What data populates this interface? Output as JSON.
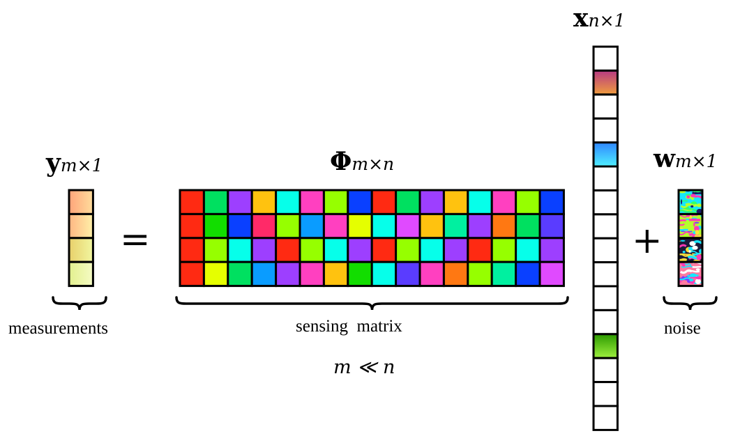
{
  "labels": {
    "y_symbol": "y",
    "y_subscript": "m×1",
    "phi_symbol": "Φ",
    "phi_subscript": "m×n",
    "x_symbol": "x",
    "x_subscript": "n×1",
    "w_symbol": "w",
    "w_subscript": "m×1",
    "equals": "=",
    "plus": "+",
    "measurements": "measurements",
    "sensing_matrix": "sensing  matrix",
    "condition": "m ≪ n",
    "noise": "noise"
  },
  "measurement_colors": [
    [
      "#ffa47a",
      "#ffdd9c"
    ],
    [
      "#ffb683",
      "#fff0a8"
    ],
    [
      "#e8d06a",
      "#f1f6a0"
    ],
    [
      "#e3f08e",
      "#f5fbc4"
    ]
  ],
  "matrix_colors": [
    [
      "#ff2a12",
      "#00e060",
      "#9d3fff",
      "#ffc20f",
      "#06ffea",
      "#ff40c0",
      "#96ff00",
      "#0a40ff",
      "#ff2a12",
      "#00e060",
      "#9d3fff",
      "#ffc20f",
      "#06ffea",
      "#ff40c0",
      "#96ff00",
      "#0a40ff"
    ],
    [
      "#ff2a12",
      "#12dd00",
      "#0a40ff",
      "#ff2a68",
      "#96ff00",
      "#0a9cff",
      "#ff40c0",
      "#e5ff00",
      "#06ffea",
      "#e04aff",
      "#ffc20f",
      "#00f0a0",
      "#9d3fff",
      "#ff7812",
      "#00e060",
      "#5a3cff"
    ],
    [
      "#ff2a12",
      "#96ff00",
      "#06ffea",
      "#9d3fff",
      "#ff2a12",
      "#96ff00",
      "#06ffea",
      "#9d3fff",
      "#ff2a12",
      "#96ff00",
      "#06ffea",
      "#9d3fff",
      "#ff2a12",
      "#96ff00",
      "#06ffea",
      "#9d3fff"
    ],
    [
      "#ff2a12",
      "#e5ff00",
      "#00e060",
      "#0a9cff",
      "#9d3fff",
      "#ff40c0",
      "#ffc20f",
      "#12dd00",
      "#06ffea",
      "#5a3cff",
      "#ff40c0",
      "#ff7812",
      "#96ff00",
      "#00f0a0",
      "#0a40ff",
      "#e04aff"
    ]
  ],
  "sparse_vector": {
    "length": 16,
    "nonzero": [
      {
        "index": 1,
        "top": "#b73a82",
        "bottom": "#f09d3e"
      },
      {
        "index": 4,
        "top": "#2f86ff",
        "bottom": "#4ff0ff"
      },
      {
        "index": 12,
        "top": "#2c9a00",
        "bottom": "#9ef03e"
      }
    ]
  },
  "noise_patches": [
    {
      "base": "#16e7ff",
      "accents": [
        "#ff3ab4",
        "#b6ff2c",
        "#32ff6a",
        "#1b1b6b"
      ]
    },
    {
      "base": "#b6ff2c",
      "accents": [
        "#ff3ab4",
        "#16e7ff",
        "#7a3cff",
        "#ffe03a"
      ]
    },
    {
      "base": "#1b1b3b",
      "accents": [
        "#ffffff",
        "#ff3ab4",
        "#16e7ff",
        "#ffe03a"
      ]
    },
    {
      "base": "#ff7aa0",
      "accents": [
        "#ff3ab4",
        "#16e7ff",
        "#7a3cff",
        "#ffffff"
      ]
    }
  ]
}
